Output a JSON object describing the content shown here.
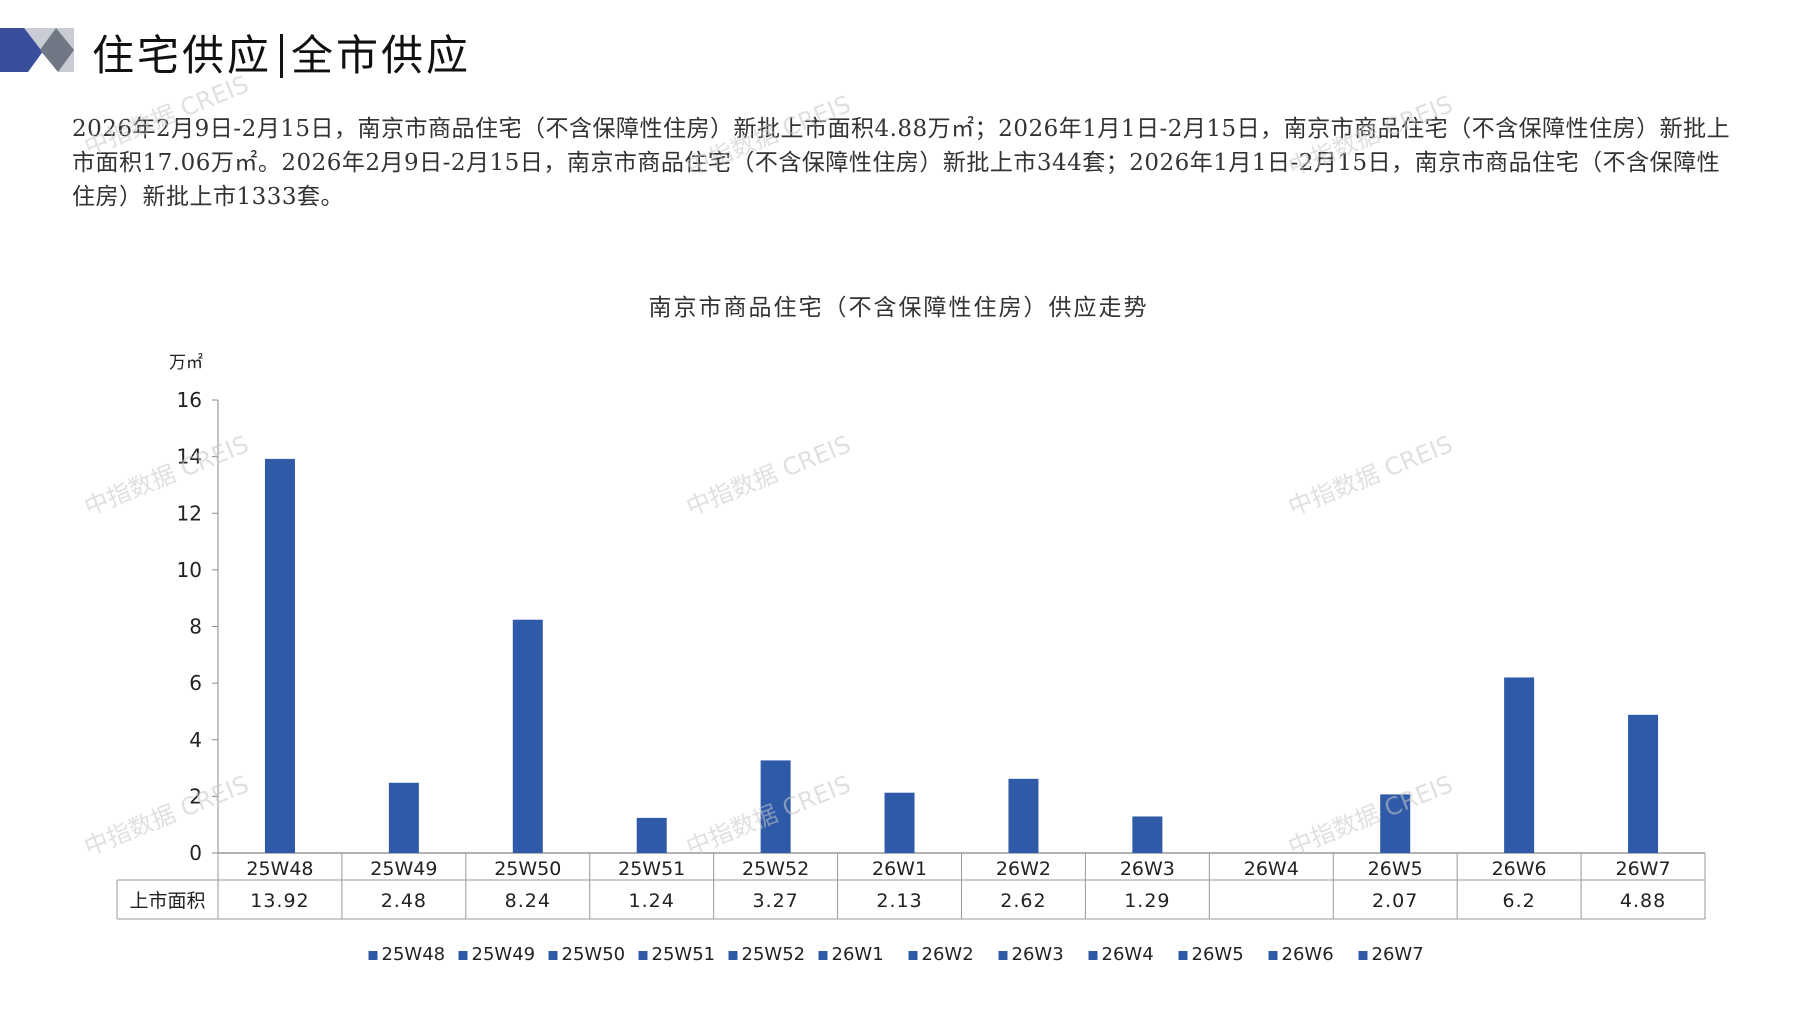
{
  "header": {
    "title_left": "住宅供应",
    "title_right": "全市供应"
  },
  "summary": {
    "text": "2026年2月9日-2月15日，南京市商品住宅（不含保障性住房）新批上市面积4.88万㎡；2026年1月1日-2月15日，南京市商品住宅（不含保障性住房）新批上市面积17.06万㎡。2026年2月9日-2月15日，南京市商品住宅（不含保障性住房）新批上市344套；2026年1月1日-2月15日，南京市商品住宅（不含保障性住房）新批上市1333套。"
  },
  "watermark": "中指数据 CREIS",
  "colors": {
    "bar": "#2e5aa7",
    "accent_dark": "#3a4f9c",
    "accent_light": "#c9ccd4"
  },
  "chart_data": {
    "type": "bar",
    "title": "南京市商品住宅（不含保障性住房）供应走势",
    "ylabel": "万㎡",
    "ylim": [
      0,
      16
    ],
    "yticks": [
      0,
      2,
      4,
      6,
      8,
      10,
      12,
      14,
      16
    ],
    "categories": [
      "25W48",
      "25W49",
      "25W50",
      "25W51",
      "25W52",
      "26W1",
      "26W2",
      "26W3",
      "26W4",
      "26W5",
      "26W6",
      "26W7"
    ],
    "series": [
      {
        "name": "上市面积",
        "values": [
          13.92,
          2.48,
          8.24,
          1.24,
          3.27,
          2.13,
          2.62,
          1.29,
          null,
          2.07,
          6.2,
          4.88
        ]
      }
    ],
    "table_row_label": "上市面积",
    "table_values": [
      "13.92",
      "2.48",
      "8.24",
      "1.24",
      "3.27",
      "2.13",
      "2.62",
      "1.29",
      "",
      "2.07",
      "6.2",
      "4.88"
    ],
    "legend": [
      "25W48",
      "25W49",
      "25W50",
      "25W51",
      "25W52",
      "26W1",
      "26W2",
      "26W3",
      "26W4",
      "26W5",
      "26W6",
      "26W7"
    ],
    "legend_position": "bottom",
    "grid": false
  }
}
